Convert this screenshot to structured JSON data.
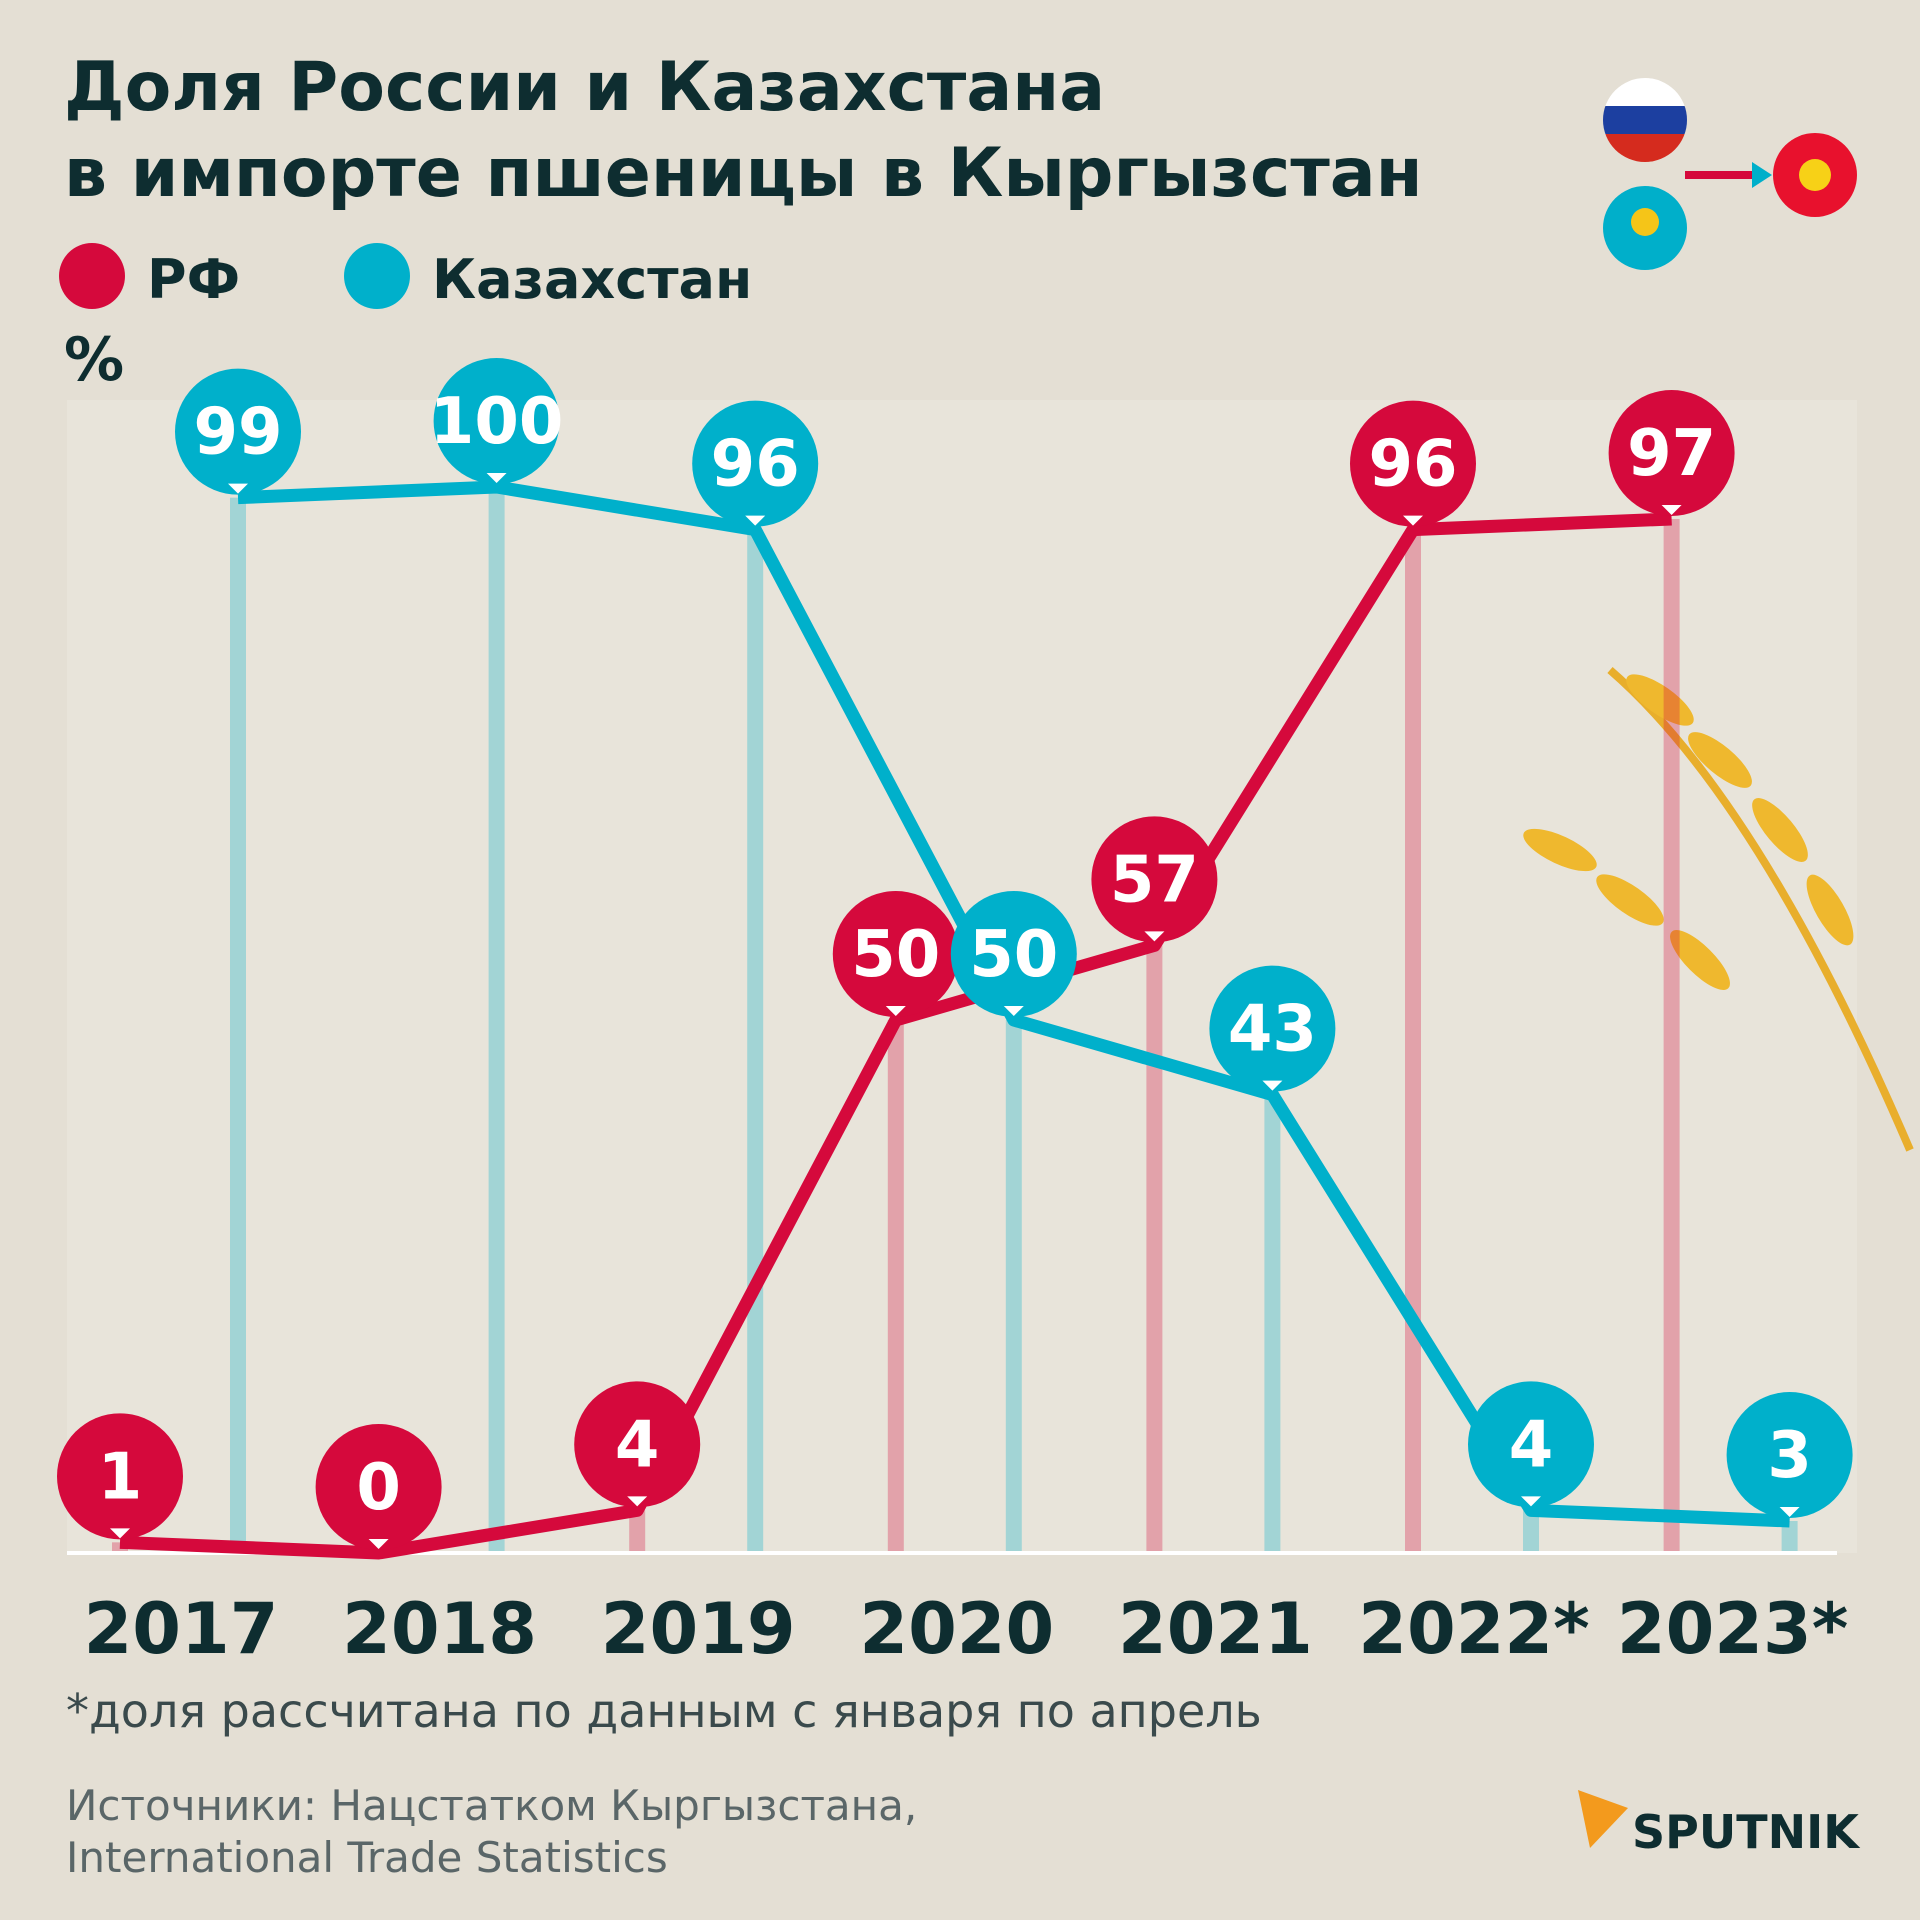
{
  "chart_data": {
    "type": "line",
    "title": [
      "Доля России и Казахстана",
      "в импорте пшеницы в Кыргызстан"
    ],
    "y_label": "%",
    "categories": [
      "2017",
      "2018",
      "2019",
      "2020",
      "2021",
      "2022*",
      "2023*"
    ],
    "series": [
      {
        "name": "РФ",
        "color": "#d5093c",
        "values": [
          1,
          0,
          4,
          50,
          57,
          96,
          97
        ]
      },
      {
        "name": "Казахстан",
        "color": "#00b0cb",
        "values": [
          99,
          100,
          96,
          50,
          43,
          4,
          3
        ]
      }
    ],
    "ylim": [
      0,
      100
    ],
    "footnote": "*доля рассчитана по данным с января по апрель",
    "source": [
      "Источники: Нацстатком Кыргызстана,",
      "International Trade Statistics"
    ],
    "brand": "SPUTNIK"
  }
}
